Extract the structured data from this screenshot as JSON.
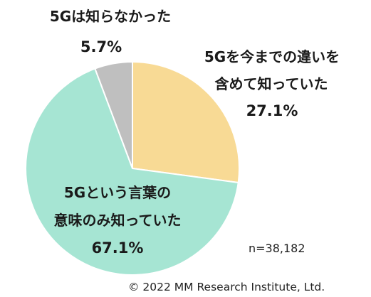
{
  "chart_data": {
    "type": "pie",
    "start": "12 o'clock",
    "direction": "clockwise",
    "slices": [
      {
        "label_lines": [
          "5Gを今までの違いを",
          "含めて知っていた"
        ],
        "value": 27.1,
        "value_label": "27.1%",
        "color": "#f8da95"
      },
      {
        "label_lines": [
          "5Gという言葉の",
          "意味のみ知っていた"
        ],
        "value": 67.1,
        "value_label": "67.1%",
        "color": "#a6e5d3"
      },
      {
        "label_lines": [
          "5Gは知らなかった"
        ],
        "value": 5.7,
        "value_label": "5.7%",
        "color": "#bfbfbf"
      }
    ],
    "sample_size": "n=38,182",
    "slice_border_color": "#ffffff"
  },
  "footer": {
    "copyright": "© 2022 MM Research Institute, Ltd."
  }
}
